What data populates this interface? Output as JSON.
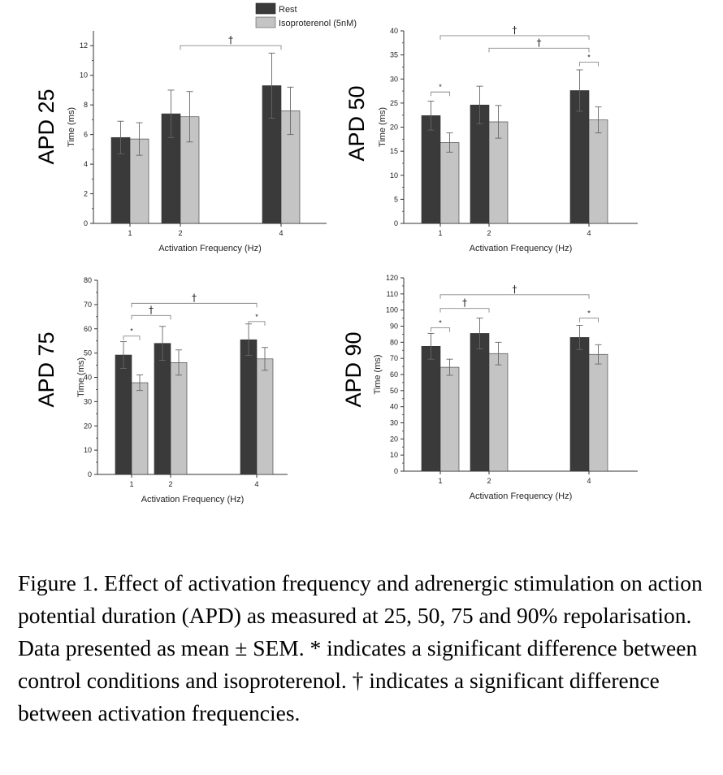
{
  "legend": {
    "entries": [
      {
        "name": "Rest",
        "color": "#3a3a3a"
      },
      {
        "name": "Isoproterenol (5nM)",
        "color": "#c4c4c4"
      }
    ],
    "placement": "top-center"
  },
  "caption": "Figure 1. Effect of activation frequency and adrenergic stimulation on action potential duration (APD) as measured at 25, 50, 75 and 90% repolarisation. Data presented as mean ± SEM. * indicates a significant difference between control conditions and isoproterenol. † indicates a significant difference between activation frequencies.",
  "colors": {
    "rest": "#3a3a3a",
    "iso": "#c4c4c4",
    "axis": "#333333"
  },
  "chart_data": [
    {
      "type": "bar",
      "panel_label": "APD 25",
      "xlabel": "Activation Frequency (Hz)",
      "ylabel": "Time (ms)",
      "categories": [
        "1",
        "2",
        "4"
      ],
      "ylim": [
        0,
        13
      ],
      "yticks": [
        0,
        2,
        4,
        6,
        8,
        10,
        12
      ],
      "series": [
        {
          "name": "Rest",
          "values": [
            5.8,
            7.4,
            9.3
          ],
          "errors": [
            1.1,
            1.6,
            2.2
          ]
        },
        {
          "name": "Isoproterenol (5nM)",
          "values": [
            5.7,
            7.2,
            7.6
          ],
          "errors": [
            1.1,
            1.7,
            1.6
          ]
        }
      ],
      "significance": [
        {
          "symbol": "†",
          "from_category": 1,
          "to_category": 2,
          "level": 12.0
        }
      ]
    },
    {
      "type": "bar",
      "panel_label": "APD 50",
      "xlabel": "Activation Frequency (Hz)",
      "ylabel": "Time (ms)",
      "categories": [
        "1",
        "2",
        "4"
      ],
      "ylim": [
        0,
        40
      ],
      "yticks": [
        0,
        5,
        10,
        15,
        20,
        25,
        30,
        35,
        40
      ],
      "series": [
        {
          "name": "Rest",
          "values": [
            22.4,
            24.6,
            27.6
          ],
          "errors": [
            3.0,
            3.9,
            4.3
          ]
        },
        {
          "name": "Isoproterenol (5nM)",
          "values": [
            16.8,
            21.1,
            21.5
          ],
          "errors": [
            2.0,
            3.4,
            2.7
          ]
        }
      ],
      "significance": [
        {
          "symbol": "*",
          "category": 0,
          "level": 27.3
        },
        {
          "symbol": "*",
          "category": 2,
          "level": 33.5
        },
        {
          "symbol": "†",
          "from_category": 0,
          "to_category": 2,
          "level": 39.0
        },
        {
          "symbol": "†",
          "from_category": 1,
          "to_category": 2,
          "level": 36.4
        }
      ]
    },
    {
      "type": "bar",
      "panel_label": "APD 75",
      "xlabel": "Activation Frequency (Hz)",
      "ylabel": "Time (ms)",
      "categories": [
        "1",
        "2",
        "4"
      ],
      "ylim": [
        0,
        80
      ],
      "yticks": [
        0,
        10,
        20,
        30,
        40,
        50,
        60,
        70,
        80
      ],
      "series": [
        {
          "name": "Rest",
          "values": [
            49.2,
            54.0,
            55.5
          ],
          "errors": [
            5.5,
            7.0,
            6.5
          ]
        },
        {
          "name": "Isoproterenol (5nM)",
          "values": [
            37.8,
            46.1,
            47.6
          ],
          "errors": [
            3.2,
            5.2,
            4.7
          ]
        }
      ],
      "significance": [
        {
          "symbol": "*",
          "category": 0,
          "level": 57.0
        },
        {
          "symbol": "*",
          "category": 2,
          "level": 63.0
        },
        {
          "symbol": "†",
          "from_category": 0,
          "to_category": 1,
          "level": 65.5
        },
        {
          "symbol": "†",
          "from_category": 0,
          "to_category": 2,
          "level": 70.5
        }
      ]
    },
    {
      "type": "bar",
      "panel_label": "APD 90",
      "xlabel": "Activation Frequency (Hz)",
      "ylabel": "Time (ms)",
      "categories": [
        "1",
        "2",
        "4"
      ],
      "ylim": [
        0,
        120
      ],
      "yticks": [
        0,
        10,
        20,
        30,
        40,
        50,
        60,
        70,
        80,
        90,
        100,
        110,
        120
      ],
      "series": [
        {
          "name": "Rest",
          "values": [
            77.5,
            85.5,
            83.0
          ],
          "errors": [
            8.0,
            9.5,
            7.5
          ]
        },
        {
          "name": "Isoproterenol (5nM)",
          "values": [
            64.5,
            73.0,
            72.5
          ],
          "errors": [
            5.0,
            7.0,
            6.0
          ]
        }
      ],
      "significance": [
        {
          "symbol": "*",
          "category": 0,
          "level": 89.0
        },
        {
          "symbol": "*",
          "category": 2,
          "level": 95.0
        },
        {
          "symbol": "†",
          "from_category": 0,
          "to_category": 1,
          "level": 101.0
        },
        {
          "symbol": "†",
          "from_category": 0,
          "to_category": 2,
          "level": 109.5
        }
      ]
    }
  ]
}
